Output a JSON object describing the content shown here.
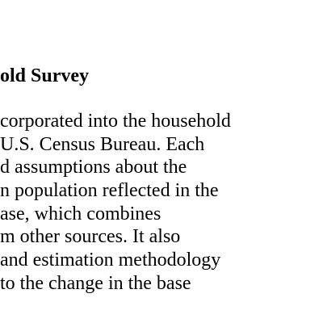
{
  "document": {
    "heading": "old Survey",
    "lines": [
      "corporated into the household",
      " U.S. Census Bureau. Each",
      "d assumptions about the",
      "n population reflected in the",
      "ase, which combines",
      "m other sources. It also",
      "and estimation methodology",
      " to the change in the base"
    ]
  }
}
